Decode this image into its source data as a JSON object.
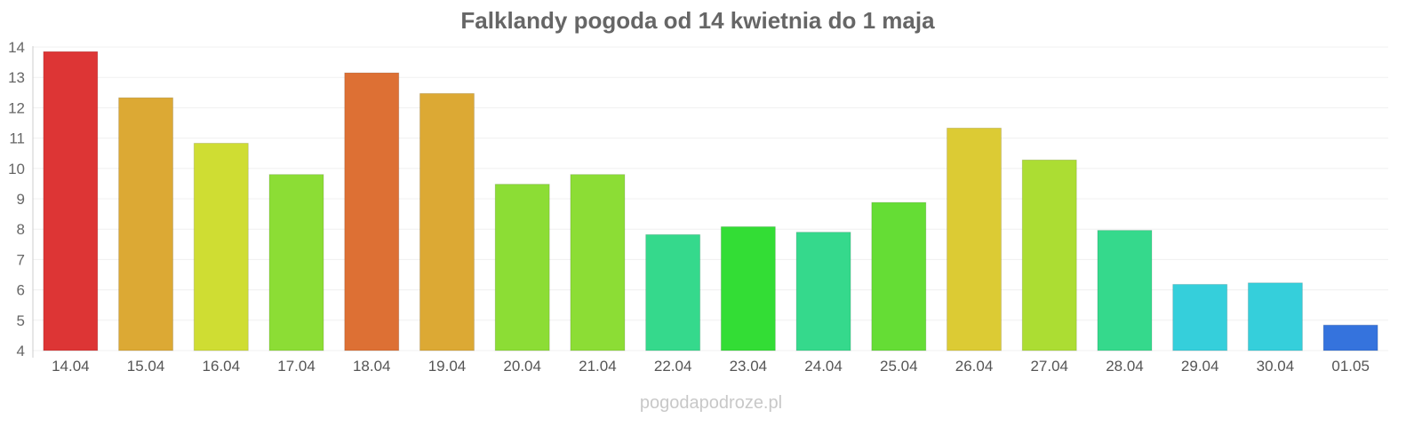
{
  "chart_data": {
    "type": "bar",
    "title": "Falklandy pogoda od 14 kwietnia do 1 maja",
    "xlabel": "",
    "ylabel": "",
    "ylim": [
      4,
      14
    ],
    "yticks": [
      4,
      5,
      6,
      7,
      8,
      9,
      10,
      11,
      12,
      13,
      14
    ],
    "grid": true,
    "categories": [
      "14.04",
      "15.04",
      "16.04",
      "17.04",
      "18.04",
      "19.04",
      "20.04",
      "21.04",
      "22.04",
      "23.04",
      "24.04",
      "25.04",
      "26.04",
      "27.04",
      "28.04",
      "29.04",
      "30.04",
      "01.05"
    ],
    "values": [
      13.85,
      12.33,
      10.83,
      9.8,
      13.15,
      12.47,
      9.48,
      9.8,
      7.82,
      8.08,
      7.9,
      8.88,
      11.33,
      10.28,
      7.96,
      6.18,
      6.23,
      4.84
    ],
    "colors": [
      "#dd3535",
      "#dca934",
      "#cfdd33",
      "#8cdd35",
      "#dd7034",
      "#dca934",
      "#8cdd35",
      "#8cdd35",
      "#35d98c",
      "#33dd35",
      "#35d98c",
      "#65dd35",
      "#dccb34",
      "#acdd33",
      "#35d98c",
      "#35cfdb",
      "#35cfdb",
      "#3573dd"
    ]
  },
  "watermark": "pogodapodroze.pl"
}
